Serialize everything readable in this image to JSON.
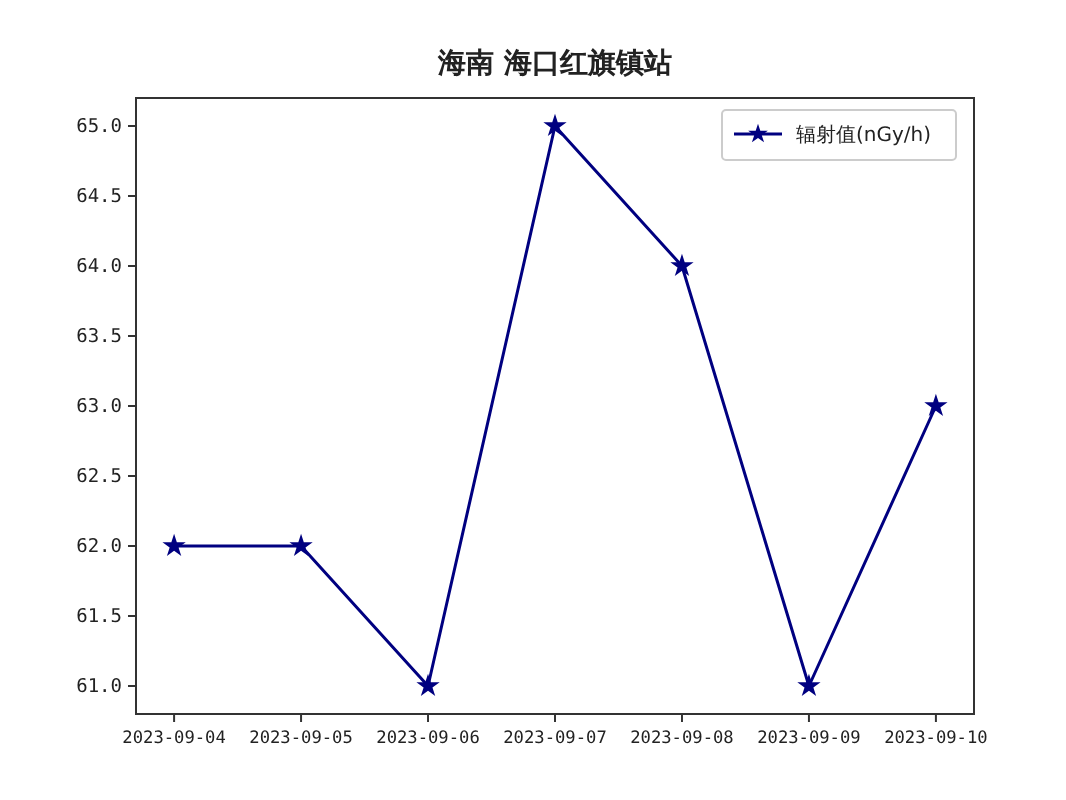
{
  "chart_data": {
    "type": "line",
    "title": "海南 海口红旗镇站",
    "x": [
      "2023-09-04",
      "2023-09-05",
      "2023-09-06",
      "2023-09-07",
      "2023-09-08",
      "2023-09-09",
      "2023-09-10"
    ],
    "series": [
      {
        "name": "辐射值(nGy/h)",
        "color": "#000080",
        "values": [
          62.0,
          62.0,
          61.0,
          65.0,
          64.0,
          61.0,
          63.0
        ]
      }
    ],
    "xlim": [
      "2023-09-03T16:48",
      "2023-09-10T07:12"
    ],
    "xticks": [
      {
        "value": "2023-09-04",
        "label": "2023-09-04"
      },
      {
        "value": "2023-09-05",
        "label": "2023-09-05"
      },
      {
        "value": "2023-09-06",
        "label": "2023-09-06"
      },
      {
        "value": "2023-09-07",
        "label": "2023-09-07"
      },
      {
        "value": "2023-09-08",
        "label": "2023-09-08"
      },
      {
        "value": "2023-09-09",
        "label": "2023-09-09"
      },
      {
        "value": "2023-09-10",
        "label": "2023-09-10"
      }
    ],
    "ylim": [
      60.8,
      65.2
    ],
    "yticks": [
      {
        "value": 61.0,
        "label": "61.0"
      },
      {
        "value": 61.5,
        "label": "61.5"
      },
      {
        "value": 62.0,
        "label": "62.0"
      },
      {
        "value": 62.5,
        "label": "62.5"
      },
      {
        "value": 63.0,
        "label": "63.0"
      },
      {
        "value": 63.5,
        "label": "63.5"
      },
      {
        "value": 64.0,
        "label": "64.0"
      },
      {
        "value": 64.5,
        "label": "64.5"
      },
      {
        "value": 65.0,
        "label": "65.0"
      }
    ],
    "marker": "star",
    "line_style": "solid",
    "legend": "top right"
  }
}
